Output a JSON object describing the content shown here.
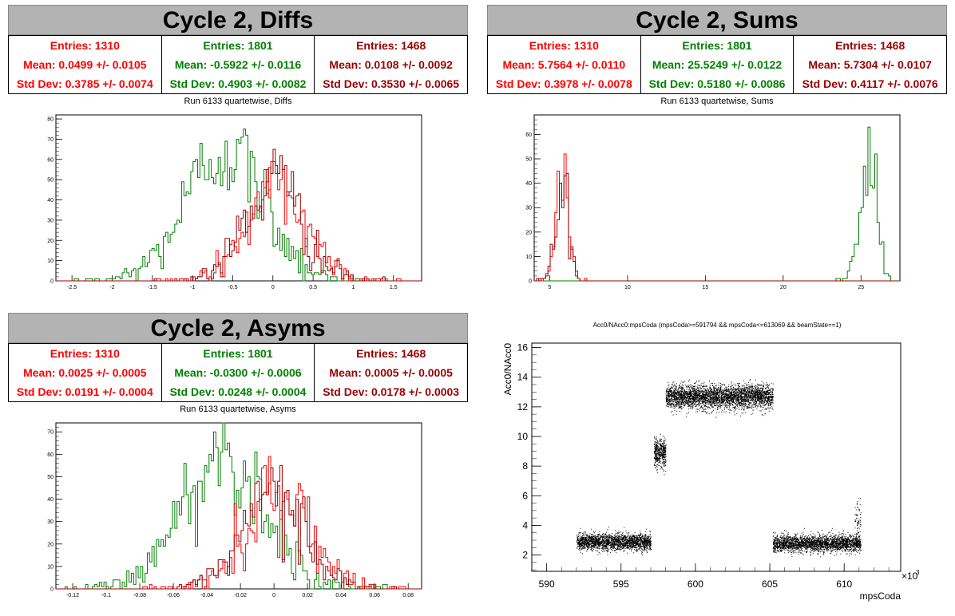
{
  "colors": {
    "red": "#ff0000",
    "green": "#008000",
    "darkred": "#990000",
    "header_bg": "#b3b3b3"
  },
  "panels": [
    {
      "title": "Cycle 2, Diffs",
      "subtitle": "Run 6133 quartetwise, Diffs",
      "stats": [
        {
          "entries": "Entries: 1310",
          "mean": "Mean: 0.0499 +/- 0.0105",
          "std": "Std Dev: 0.3785 +/- 0.0074",
          "color": "#ff0000"
        },
        {
          "entries": "Entries: 1801",
          "mean": "Mean: -0.5922 +/- 0.0116",
          "std": "Std Dev: 0.4903 +/- 0.0082",
          "color": "#008000"
        },
        {
          "entries": "Entries: 1468",
          "mean": "Mean: 0.0108 +/- 0.0092",
          "std": "Std Dev: 0.3530 +/- 0.0065",
          "color": "#990000"
        }
      ]
    },
    {
      "title": "Cycle 2, Sums",
      "subtitle": "Run 6133 quartetwise, Sums",
      "stats": [
        {
          "entries": "Entries: 1310",
          "mean": "Mean: 5.7564 +/- 0.0110",
          "std": "Std Dev: 0.3978 +/- 0.0078",
          "color": "#ff0000"
        },
        {
          "entries": "Entries: 1801",
          "mean": "Mean: 25.5249 +/- 0.0122",
          "std": "Std Dev: 0.5180 +/- 0.0086",
          "color": "#008000"
        },
        {
          "entries": "Entries: 1468",
          "mean": "Mean: 5.7304 +/- 0.0107",
          "std": "Std Dev: 0.4117 +/- 0.0076",
          "color": "#990000"
        }
      ]
    },
    {
      "title": "Cycle 2, Asyms",
      "subtitle": "Run 6133 quartetwise, Asyms",
      "stats": [
        {
          "entries": "Entries: 1310",
          "mean": "Mean: 0.0025 +/- 0.0005",
          "std": "Std Dev: 0.0191 +/- 0.0004",
          "color": "#ff0000"
        },
        {
          "entries": "Entries: 1801",
          "mean": "Mean: -0.0300 +/- 0.0006",
          "std": "Std Dev: 0.0248 +/- 0.0004",
          "color": "#008000"
        },
        {
          "entries": "Entries: 1468",
          "mean": "Mean: 0.0005 +/- 0.0005",
          "std": "Std Dev: 0.0178 +/- 0.0003",
          "color": "#990000"
        }
      ]
    }
  ],
  "chart_data": [
    {
      "type": "histogram",
      "title": "Run 6133 quartetwise, Diffs",
      "xlim": [
        -2.7,
        1.85
      ],
      "ylim": [
        0,
        82
      ],
      "xticks": [
        "-2.5",
        "-2",
        "-1.5",
        "-1",
        "-0.5",
        "0",
        "0.5",
        "1",
        "1.5"
      ],
      "xtick_values": [
        -2.5,
        -2,
        -1.5,
        -1,
        -0.5,
        0,
        0.5,
        1,
        1.5
      ],
      "yticks": [
        0,
        10,
        20,
        30,
        40,
        50,
        60,
        70,
        80
      ],
      "series": [
        {
          "color": "#008000",
          "mean": -0.5922,
          "std": 0.4903,
          "peak": 79
        },
        {
          "color": "#ff0000",
          "mean": 0.0499,
          "std": 0.3785,
          "peak": 55
        },
        {
          "color": "#990000",
          "mean": 0.0108,
          "std": 0.353,
          "peak": 60
        }
      ]
    },
    {
      "type": "histogram",
      "title": "Run 6133 quartetwise, Sums",
      "xlim": [
        4.0,
        27.5
      ],
      "ylim": [
        0,
        68
      ],
      "xticks": [
        "5",
        "10",
        "15",
        "20",
        "25"
      ],
      "xtick_values": [
        5,
        10,
        15,
        20,
        25
      ],
      "yticks": [
        0,
        10,
        20,
        30,
        40,
        50,
        60
      ],
      "series": [
        {
          "color": "#008000",
          "mean": 25.5249,
          "std": 0.518,
          "peak": 66
        },
        {
          "color": "#ff0000",
          "mean": 5.7564,
          "std": 0.3978,
          "peak": 51
        },
        {
          "color": "#990000",
          "mean": 5.7304,
          "std": 0.4117,
          "peak": 46
        }
      ]
    },
    {
      "type": "histogram",
      "title": "Run 6133 quartetwise, Asyms",
      "xlim": [
        -0.13,
        0.088
      ],
      "ylim": [
        0,
        74
      ],
      "xticks": [
        "-0.12",
        "-0.1",
        "-0.08",
        "-0.06",
        "-0.04",
        "-0.02",
        "0",
        "0.02",
        "0.04",
        "0.06",
        "0.08"
      ],
      "xtick_values": [
        -0.12,
        -0.1,
        -0.08,
        -0.06,
        -0.04,
        -0.02,
        0,
        0.02,
        0.04,
        0.06,
        0.08
      ],
      "yticks": [
        0,
        10,
        20,
        30,
        40,
        50,
        60,
        70
      ],
      "series": [
        {
          "color": "#008000",
          "mean": -0.03,
          "std": 0.0248,
          "peak": 72
        },
        {
          "color": "#ff0000",
          "mean": 0.0025,
          "std": 0.0191,
          "peak": 55
        },
        {
          "color": "#990000",
          "mean": 0.0005,
          "std": 0.0178,
          "peak": 52
        }
      ]
    },
    {
      "type": "scatter",
      "title": "Acc0/NAcc0:mpsCoda (mpsCoda>=591794 && mpsCoda<=613069 && beamState==1)",
      "xlabel": "mpsCoda",
      "ylabel": "Acc0/NAcc0",
      "x_multiplier": "×10",
      "x_multiplier_exp": "3",
      "xlim": [
        589.0,
        613.8
      ],
      "ylim": [
        0.9,
        16.3
      ],
      "xticks": [
        "590",
        "595",
        "600",
        "605",
        "610"
      ],
      "xtick_values": [
        590,
        595,
        600,
        605,
        610
      ],
      "yticks": [
        "2",
        "4",
        "6",
        "8",
        "10",
        "12",
        "14",
        "16"
      ],
      "ytick_values": [
        2,
        4,
        6,
        8,
        10,
        12,
        14,
        16
      ],
      "clusters": [
        {
          "x": [
            592.0,
            597.0
          ],
          "y_center": 2.9,
          "y_spread": 0.45,
          "count": 2200
        },
        {
          "x": [
            597.2,
            598.0
          ],
          "y_center": 8.9,
          "y_spread": 0.8,
          "count": 450
        },
        {
          "x": [
            598.0,
            605.2
          ],
          "y_center": 12.7,
          "y_spread": 0.65,
          "count": 3600
        },
        {
          "x": [
            605.2,
            611.1
          ],
          "y_center": 2.8,
          "y_spread": 0.45,
          "count": 2600
        },
        {
          "x": [
            610.7,
            611.1
          ],
          "y_center": 4.5,
          "y_spread": 1.2,
          "count": 60
        }
      ]
    }
  ]
}
